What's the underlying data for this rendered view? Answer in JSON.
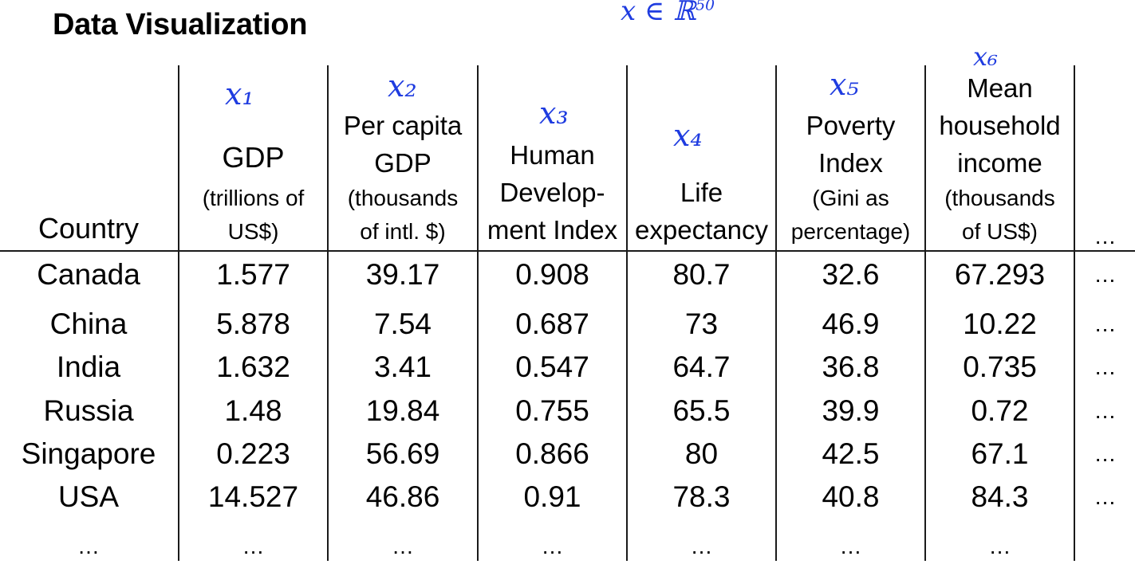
{
  "title": "Data Visualization",
  "columns": [
    {
      "lines": [
        "Country"
      ],
      "note": ""
    },
    {
      "main": "GDP",
      "sub": [
        "(trillions of",
        "US$)"
      ],
      "note": "x₁"
    },
    {
      "main": [
        "Per capita",
        "GDP"
      ],
      "sub": [
        "(thousands",
        "of intl. $)"
      ],
      "note": "x₂"
    },
    {
      "main": [
        "Human",
        "Develop-",
        "ment Index"
      ],
      "note": "x₃"
    },
    {
      "main": [
        "Life",
        "expectancy"
      ],
      "note": "x₄"
    },
    {
      "main": [
        "Poverty",
        "Index"
      ],
      "sub": [
        "(Gini as",
        "percentage)"
      ],
      "note": "x₅"
    },
    {
      "main": [
        "Mean",
        "household",
        "income"
      ],
      "sub": [
        "(thousands",
        "of US$)"
      ],
      "note": "x₆"
    },
    {
      "main": "…"
    }
  ],
  "rows": [
    [
      "Canada",
      "1.577",
      "39.17",
      "0.908",
      "80.7",
      "32.6",
      "67.293",
      "…"
    ],
    [
      "China",
      "5.878",
      "7.54",
      "0.687",
      "73",
      "46.9",
      "10.22",
      "…"
    ],
    [
      "India",
      "1.632",
      "3.41",
      "0.547",
      "64.7",
      "36.8",
      "0.735",
      "…"
    ],
    [
      "Russia",
      "1.48",
      "19.84",
      "0.755",
      "65.5",
      "39.9",
      "0.72",
      "…"
    ],
    [
      "Singapore",
      "0.223",
      "56.69",
      "0.866",
      "80",
      "42.5",
      "67.1",
      "…"
    ],
    [
      "USA",
      "14.527",
      "46.86",
      "0.91",
      "78.3",
      "40.8",
      "84.3",
      "…"
    ],
    [
      "…",
      "…",
      "…",
      "…",
      "…",
      "…",
      "…",
      ""
    ]
  ],
  "annotation_top": "x ∈ ℝ",
  "ink_color": "#1f3ce0"
}
